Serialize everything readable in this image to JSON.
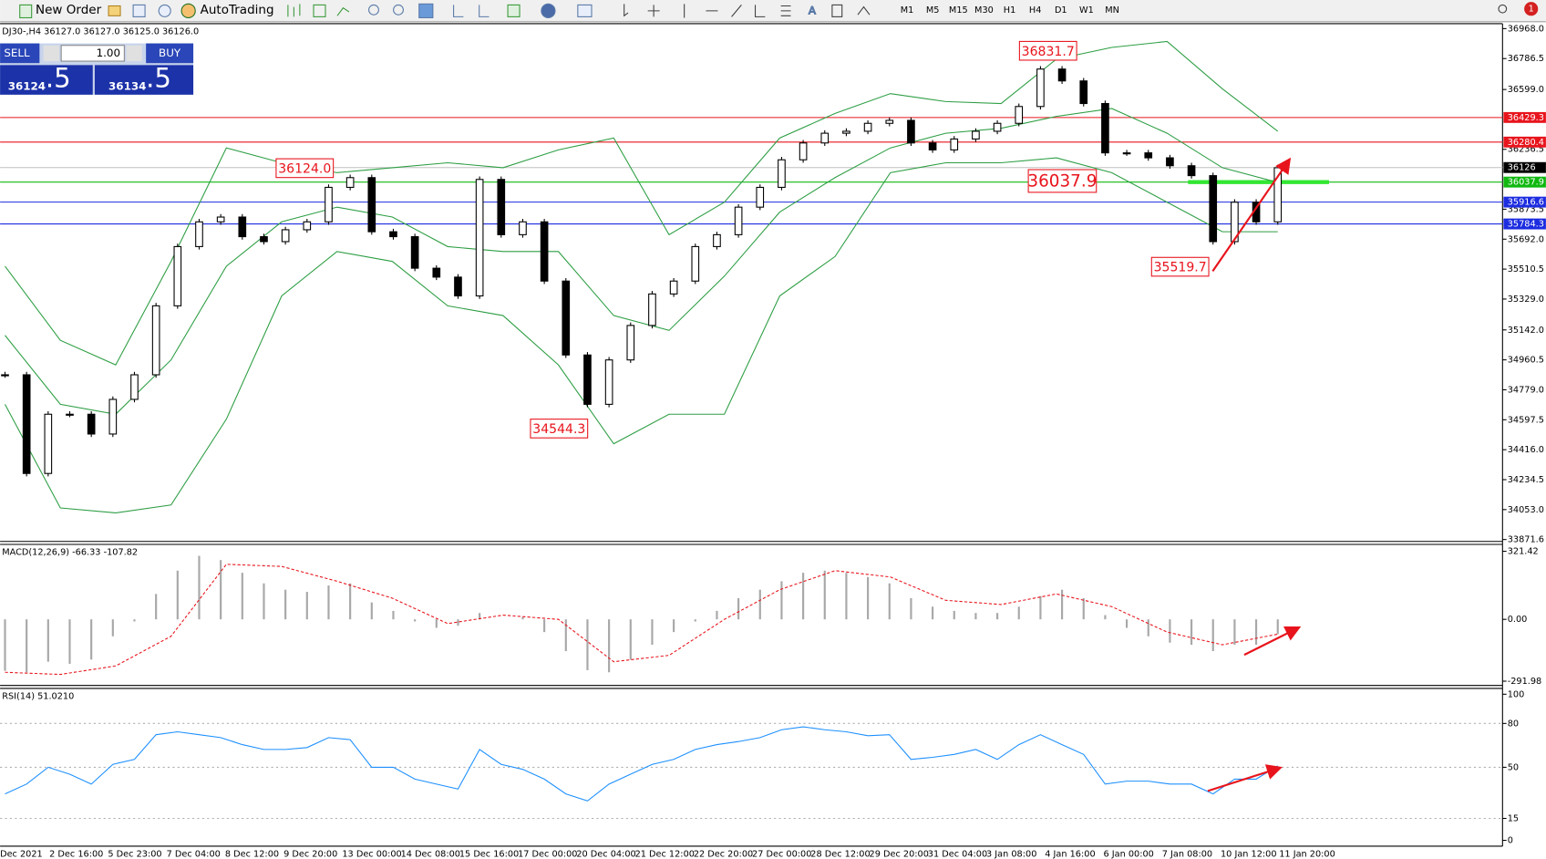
{
  "toolbar": {
    "new_order": "New Order",
    "autotrading": "AutoTrading",
    "timeframes": [
      "M1",
      "M5",
      "M15",
      "M30",
      "H1",
      "H4",
      "D1",
      "W1",
      "MN"
    ],
    "alerts": "1"
  },
  "trade_panel": {
    "sell": "SELL",
    "lot": "1.00",
    "buy": "BUY",
    "bid_main": "36124",
    "bid_pips": ".5",
    "ask_main": "36134",
    "ask_pips": ".5"
  },
  "time_axis": [
    "Dec 2021",
    "2 Dec 16:00",
    "5 Dec 23:00",
    "7 Dec 04:00",
    "8 Dec 12:00",
    "9 Dec 20:00",
    "13 Dec 00:00",
    "14 Dec 08:00",
    "15 Dec 16:00",
    "17 Dec 00:00",
    "20 Dec 04:00",
    "21 Dec 12:00",
    "22 Dec 20:00",
    "27 Dec 00:00",
    "28 Dec 12:00",
    "29 Dec 20:00",
    "31 Dec 04:00",
    "3 Jan 08:00",
    "4 Jan 16:00",
    "6 Jan 00:00",
    "7 Jan 08:00",
    "10 Jan 12:00",
    "11 Jan 20:00"
  ],
  "chart_data": [
    {
      "type": "candlestick",
      "title": "DJ30-,H4  36127.0 36127.0 36125.0 36126.0",
      "ylim": [
        33860,
        36998
      ],
      "yticks": [
        {
          "value": 36968,
          "label": "36968.0"
        },
        36786.5,
        {
          "value": 36599,
          "label": "36599.0"
        },
        36236.5,
        35873.5,
        {
          "value": 35692,
          "label": "35692.0"
        },
        35510.5,
        {
          "value": 35329,
          "label": "35329.0"
        },
        {
          "value": 35142,
          "label": "35142.0"
        },
        34960.5,
        {
          "value": 34779,
          "label": "34779.0"
        },
        34597.5,
        {
          "value": 34416,
          "label": "34416.0"
        },
        34234.5,
        {
          "value": 34053,
          "label": "34053.0"
        },
        33871.6
      ],
      "values": [
        34870,
        34272,
        34631,
        34631,
        34511,
        34721,
        34870,
        35288,
        35647,
        35797,
        35826,
        35707,
        35677,
        35749,
        35797,
        36006,
        36065,
        35737,
        35707,
        35516,
        35462,
        35348,
        36054,
        35719,
        35797,
        35438,
        34990,
        34691,
        34960,
        35169,
        35360,
        35438,
        35647,
        35719,
        35886,
        36006,
        36173,
        36275,
        36334,
        36346,
        36394,
        36412,
        36275,
        36233,
        36299,
        36346,
        36394,
        36496,
        36723,
        36651,
        36514,
        36215,
        36215,
        36185,
        36137,
        36077,
        35677,
        35916,
        35797,
        36125
      ],
      "bands": {
        "color": "#2e9e44",
        "upper": [
          35528,
          35079,
          34930,
          35557,
          36245,
          36155,
          36095,
          36125,
          36155,
          36125,
          36233,
          36305,
          35719,
          35916,
          36305,
          36454,
          36574,
          36526,
          36514,
          36783,
          36854,
          36890,
          36603,
          36346
        ],
        "middle": [
          35109,
          34691,
          34631,
          34960,
          35528,
          35797,
          35886,
          35826,
          35647,
          35617,
          35617,
          35229,
          35139,
          35468,
          35856,
          36065,
          36245,
          36334,
          36364,
          36436,
          36484,
          36334,
          36125,
          36036
        ],
        "lower": [
          34691,
          34063,
          34033,
          34081,
          34601,
          35348,
          35617,
          35557,
          35288,
          35229,
          34930,
          34452,
          34631,
          34631,
          35348,
          35587,
          36095,
          36155,
          36155,
          36185,
          36095,
          35916,
          35737,
          35737
        ]
      },
      "levels": [
        {
          "value": 36429.3,
          "color": "#e8141c"
        },
        {
          "value": 36280.4,
          "color": "#e8141c"
        },
        {
          "value": 36126.0,
          "color": "#000000"
        },
        {
          "value": 36037.9,
          "color": "#10b810"
        },
        {
          "value": 35916.6,
          "color": "#1c2ce0"
        },
        {
          "value": 35784.3,
          "color": "#1c2ce0"
        }
      ],
      "annotations": [
        "36831.7",
        "36124.0",
        "36037.9",
        "34544.3",
        "35519.7"
      ]
    },
    {
      "type": "macd",
      "title": "MACD(12,26,9) -66.33 -107.82",
      "ylim": [
        -312,
        354
      ],
      "yticks": [
        321.42,
        {
          "value": 0,
          "label": "0.00"
        },
        -291.98
      ],
      "histogram": [
        -243,
        -250,
        -200,
        -210,
        -190,
        -80,
        -10,
        120,
        230,
        300,
        280,
        220,
        170,
        140,
        130,
        160,
        170,
        80,
        40,
        -10,
        -40,
        -30,
        30,
        0,
        10,
        -60,
        -150,
        -240,
        -250,
        -190,
        -120,
        -60,
        -10,
        40,
        100,
        140,
        180,
        220,
        230,
        220,
        200,
        170,
        100,
        60,
        40,
        30,
        30,
        60,
        110,
        140,
        100,
        20,
        -40,
        -80,
        -110,
        -120,
        -150,
        -120,
        -120,
        -70
      ],
      "histogram_color": "#a8a8a8",
      "signal": [
        -250,
        -260,
        -220,
        -80,
        260,
        250,
        180,
        100,
        -20,
        20,
        0,
        -200,
        -170,
        0,
        140,
        230,
        200,
        90,
        70,
        120,
        60,
        -60,
        -120,
        -70
      ],
      "signal_color": "#e8141c"
    },
    {
      "type": "line",
      "title": "RSI(14) 51.0210",
      "ylim": [
        -4,
        104
      ],
      "yticks": [
        100,
        80,
        50,
        15,
        0
      ],
      "values": [
        31.8,
        38.5,
        50,
        45.3,
        38.5,
        52,
        55.4,
        72.3,
        74.3,
        72.3,
        70.3,
        65.5,
        62.2,
        62.2,
        63.5,
        70.3,
        68.9,
        50,
        50,
        41.9,
        38.5,
        35.1,
        62.2,
        52,
        48.6,
        41.9,
        31.8,
        27,
        38.5,
        45.3,
        52,
        55.4,
        62.2,
        65.5,
        67.6,
        70.3,
        75.7,
        77.7,
        75.7,
        74.3,
        71.6,
        72.3,
        55.4,
        56.8,
        58.8,
        62.2,
        55.4,
        65.5,
        72.3,
        65.5,
        58.8,
        38.5,
        40.5,
        40.5,
        38.5,
        38.5,
        31.8,
        41.9,
        41.9,
        51
      ],
      "color": "#1e90ff"
    }
  ]
}
